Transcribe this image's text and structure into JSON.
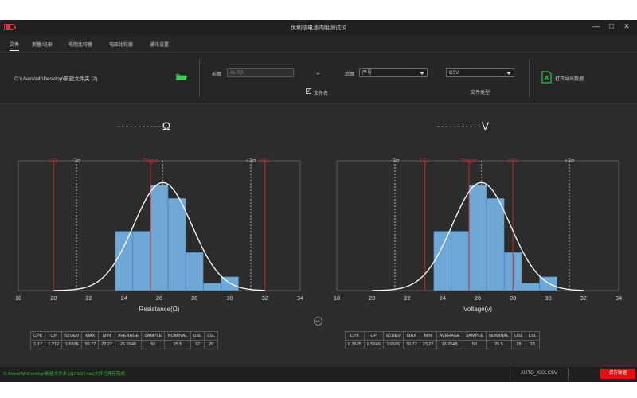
{
  "window": {
    "title": "优利德电池内阻测试仪",
    "minimize": "—",
    "maximize": "□",
    "close": "✕"
  },
  "tabs": [
    {
      "label": "文件"
    },
    {
      "label": "测量/记录"
    },
    {
      "label": "电阻比较器"
    },
    {
      "label": "电压比较器"
    },
    {
      "label": "通讯设置"
    }
  ],
  "toolbar": {
    "path": "C:\\Users\\Mr\\Desktop\\新建文件夹 (2)",
    "name_label": "前缀",
    "name_value": "AUTO",
    "plus": "+",
    "suffix_label": "后缀",
    "suffix_value": "序号",
    "file_type_value": "CSV",
    "file_type_label": "文件类型",
    "checkbox_label": "文件名",
    "checkbox_checked": "✓",
    "export_label": "打开导出数据"
  },
  "charts": {
    "left": {
      "title": "-----------Ω"
    },
    "right": {
      "title": "-----------V"
    }
  },
  "chart_data": [
    {
      "type": "bar",
      "xlabel": "Resistance(Ω)",
      "xlim": [
        18,
        34
      ],
      "xticks": [
        18,
        20,
        22,
        24,
        26,
        28,
        30,
        32,
        34
      ],
      "bin_edges": [
        23.5,
        24.5,
        25.5,
        26.5,
        27.5,
        28.5,
        29.5,
        30.5
      ],
      "values": [
        0.56,
        0.56,
        1.0,
        0.87,
        0.36,
        0.07,
        0.13
      ],
      "normal_curve": {
        "mean": 26.2,
        "sd": 1.65
      },
      "markers": [
        {
          "label": "LSL",
          "x": 20,
          "color": "#c62828"
        },
        {
          "label": "-3σ",
          "x": 21.3,
          "color": "#bbbbbb"
        },
        {
          "label": "Target",
          "x": 25.5,
          "color": "#c62828"
        },
        {
          "label": "+3σ",
          "x": 31.2,
          "color": "#bbbbbb"
        },
        {
          "label": "USL",
          "x": 32,
          "color": "#c62828"
        }
      ],
      "mean_line": 26.2,
      "stats": {
        "headers": [
          "CPK",
          "CP",
          "STDEV",
          "MAX",
          "MIN",
          "AVERAGE",
          "SAMPLE",
          "NOMINAL",
          "USL",
          "LSL"
        ],
        "values": [
          "1.17",
          "1.212",
          "1.6506",
          "30.77",
          "23.27",
          "26.2048",
          "50",
          "25.5",
          "32",
          "20"
        ]
      }
    },
    {
      "type": "bar",
      "xlabel": "Voltage(v)",
      "xlim": [
        18,
        34
      ],
      "xticks": [
        18,
        20,
        22,
        24,
        26,
        28,
        30,
        32,
        34
      ],
      "bin_edges": [
        23.5,
        24.5,
        25.5,
        26.5,
        27.5,
        28.5,
        29.5,
        30.5
      ],
      "values": [
        0.56,
        0.56,
        1.0,
        0.87,
        0.36,
        0.07,
        0.13
      ],
      "normal_curve": {
        "mean": 26.2,
        "sd": 1.65
      },
      "markers": [
        {
          "label": "-3σ",
          "x": 21.3,
          "color": "#bbbbbb"
        },
        {
          "label": "LSL",
          "x": 23,
          "color": "#c62828"
        },
        {
          "label": "Target",
          "x": 25.5,
          "color": "#c62828"
        },
        {
          "label": "USL",
          "x": 28,
          "color": "#c62828"
        },
        {
          "label": "+3σ",
          "x": 31.2,
          "color": "#bbbbbb"
        }
      ],
      "mean_line": 26.2,
      "stats": {
        "headers": [
          "CPK",
          "CP",
          "STDEV",
          "MAX",
          "MIN",
          "AVERAGE",
          "SAMPLE",
          "NOMINAL",
          "USL",
          "LSL"
        ],
        "values": [
          "0.3625",
          "0.5049",
          "1.6506",
          "30.77",
          "23.27",
          "26.2048",
          "50",
          "25.5",
          "28",
          "23"
        ]
      }
    }
  ],
  "status": {
    "message": "C:\\Users\\Mr\\Desktop\\新建文件夹 (2)\\TEST.xlsx文件已保存完成",
    "file": "AUTO_XXX.CSV",
    "indicator": "保存数据"
  },
  "colors": {
    "bar": "#6fa8d6",
    "curve": "#ffffff",
    "limit": "#c62828",
    "sigma": "#bbbbbb",
    "background": "#2c2c2c"
  }
}
